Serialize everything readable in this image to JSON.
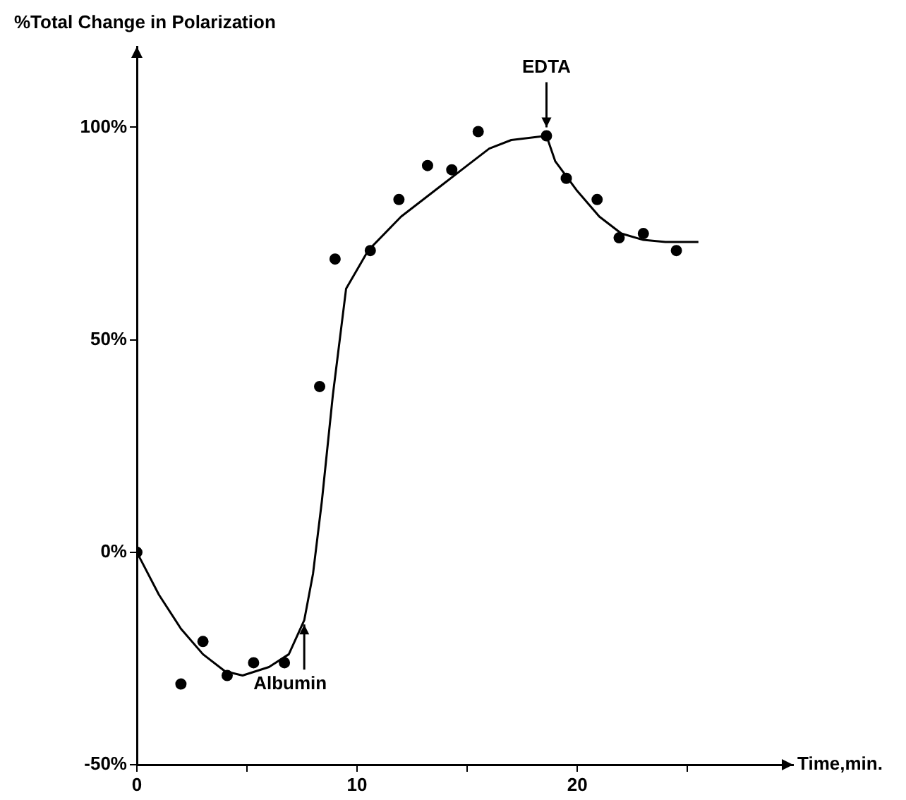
{
  "chart_data": {
    "type": "scatter",
    "xlabel": "Time,min.",
    "ylabel": "%Total Change in Polarization",
    "xlim": [
      0,
      29.8
    ],
    "ylim": [
      -50,
      119
    ],
    "xticks": [
      0,
      {
        "value": 5,
        "label": null
      },
      10,
      {
        "value": 15,
        "label": null
      },
      20,
      {
        "value": 25,
        "label": null
      }
    ],
    "yticks": [
      {
        "value": -50,
        "label": "-50%"
      },
      {
        "value": 0,
        "label": "0%"
      },
      {
        "value": 50,
        "label": "50%"
      },
      {
        "value": 100,
        "label": "100%"
      }
    ],
    "grid": false,
    "legend": false,
    "marker": "circle",
    "series": [
      {
        "type": "scatter",
        "color": "#000000",
        "x": [
          0,
          2.0,
          3.0,
          4.1,
          5.3,
          6.7,
          8.3,
          9.0,
          10.6,
          11.9,
          13.2,
          14.3,
          15.5,
          18.6,
          19.5,
          20.9,
          21.9,
          23.0,
          24.5
        ],
        "values": [
          0,
          -31,
          -21,
          -29,
          -26,
          -26,
          39,
          69,
          71,
          83,
          91,
          90,
          99,
          98,
          88,
          83,
          74,
          75,
          71
        ]
      },
      {
        "type": "line",
        "color": "#000000",
        "marker": "none",
        "x": [
          0,
          1,
          2,
          3,
          4,
          4.8,
          6,
          6.9,
          7.6,
          8.0,
          8.4,
          8.9,
          9.5,
          10.5,
          12,
          14,
          15,
          16,
          17,
          18.6,
          19,
          20,
          21,
          22,
          23,
          24,
          25.5
        ],
        "values": [
          0,
          -10,
          -18,
          -24,
          -28,
          -29,
          -27,
          -24,
          -16,
          -5,
          12,
          37,
          62,
          71,
          79,
          87,
          91,
          95,
          97,
          98,
          92,
          85,
          79,
          75,
          73.5,
          73,
          73
        ]
      }
    ],
    "annotations": [
      {
        "text": "EDTA",
        "x": 18.6,
        "y": 98
      },
      {
        "text": "Albumin",
        "x": 7.6,
        "y": -16
      }
    ]
  }
}
